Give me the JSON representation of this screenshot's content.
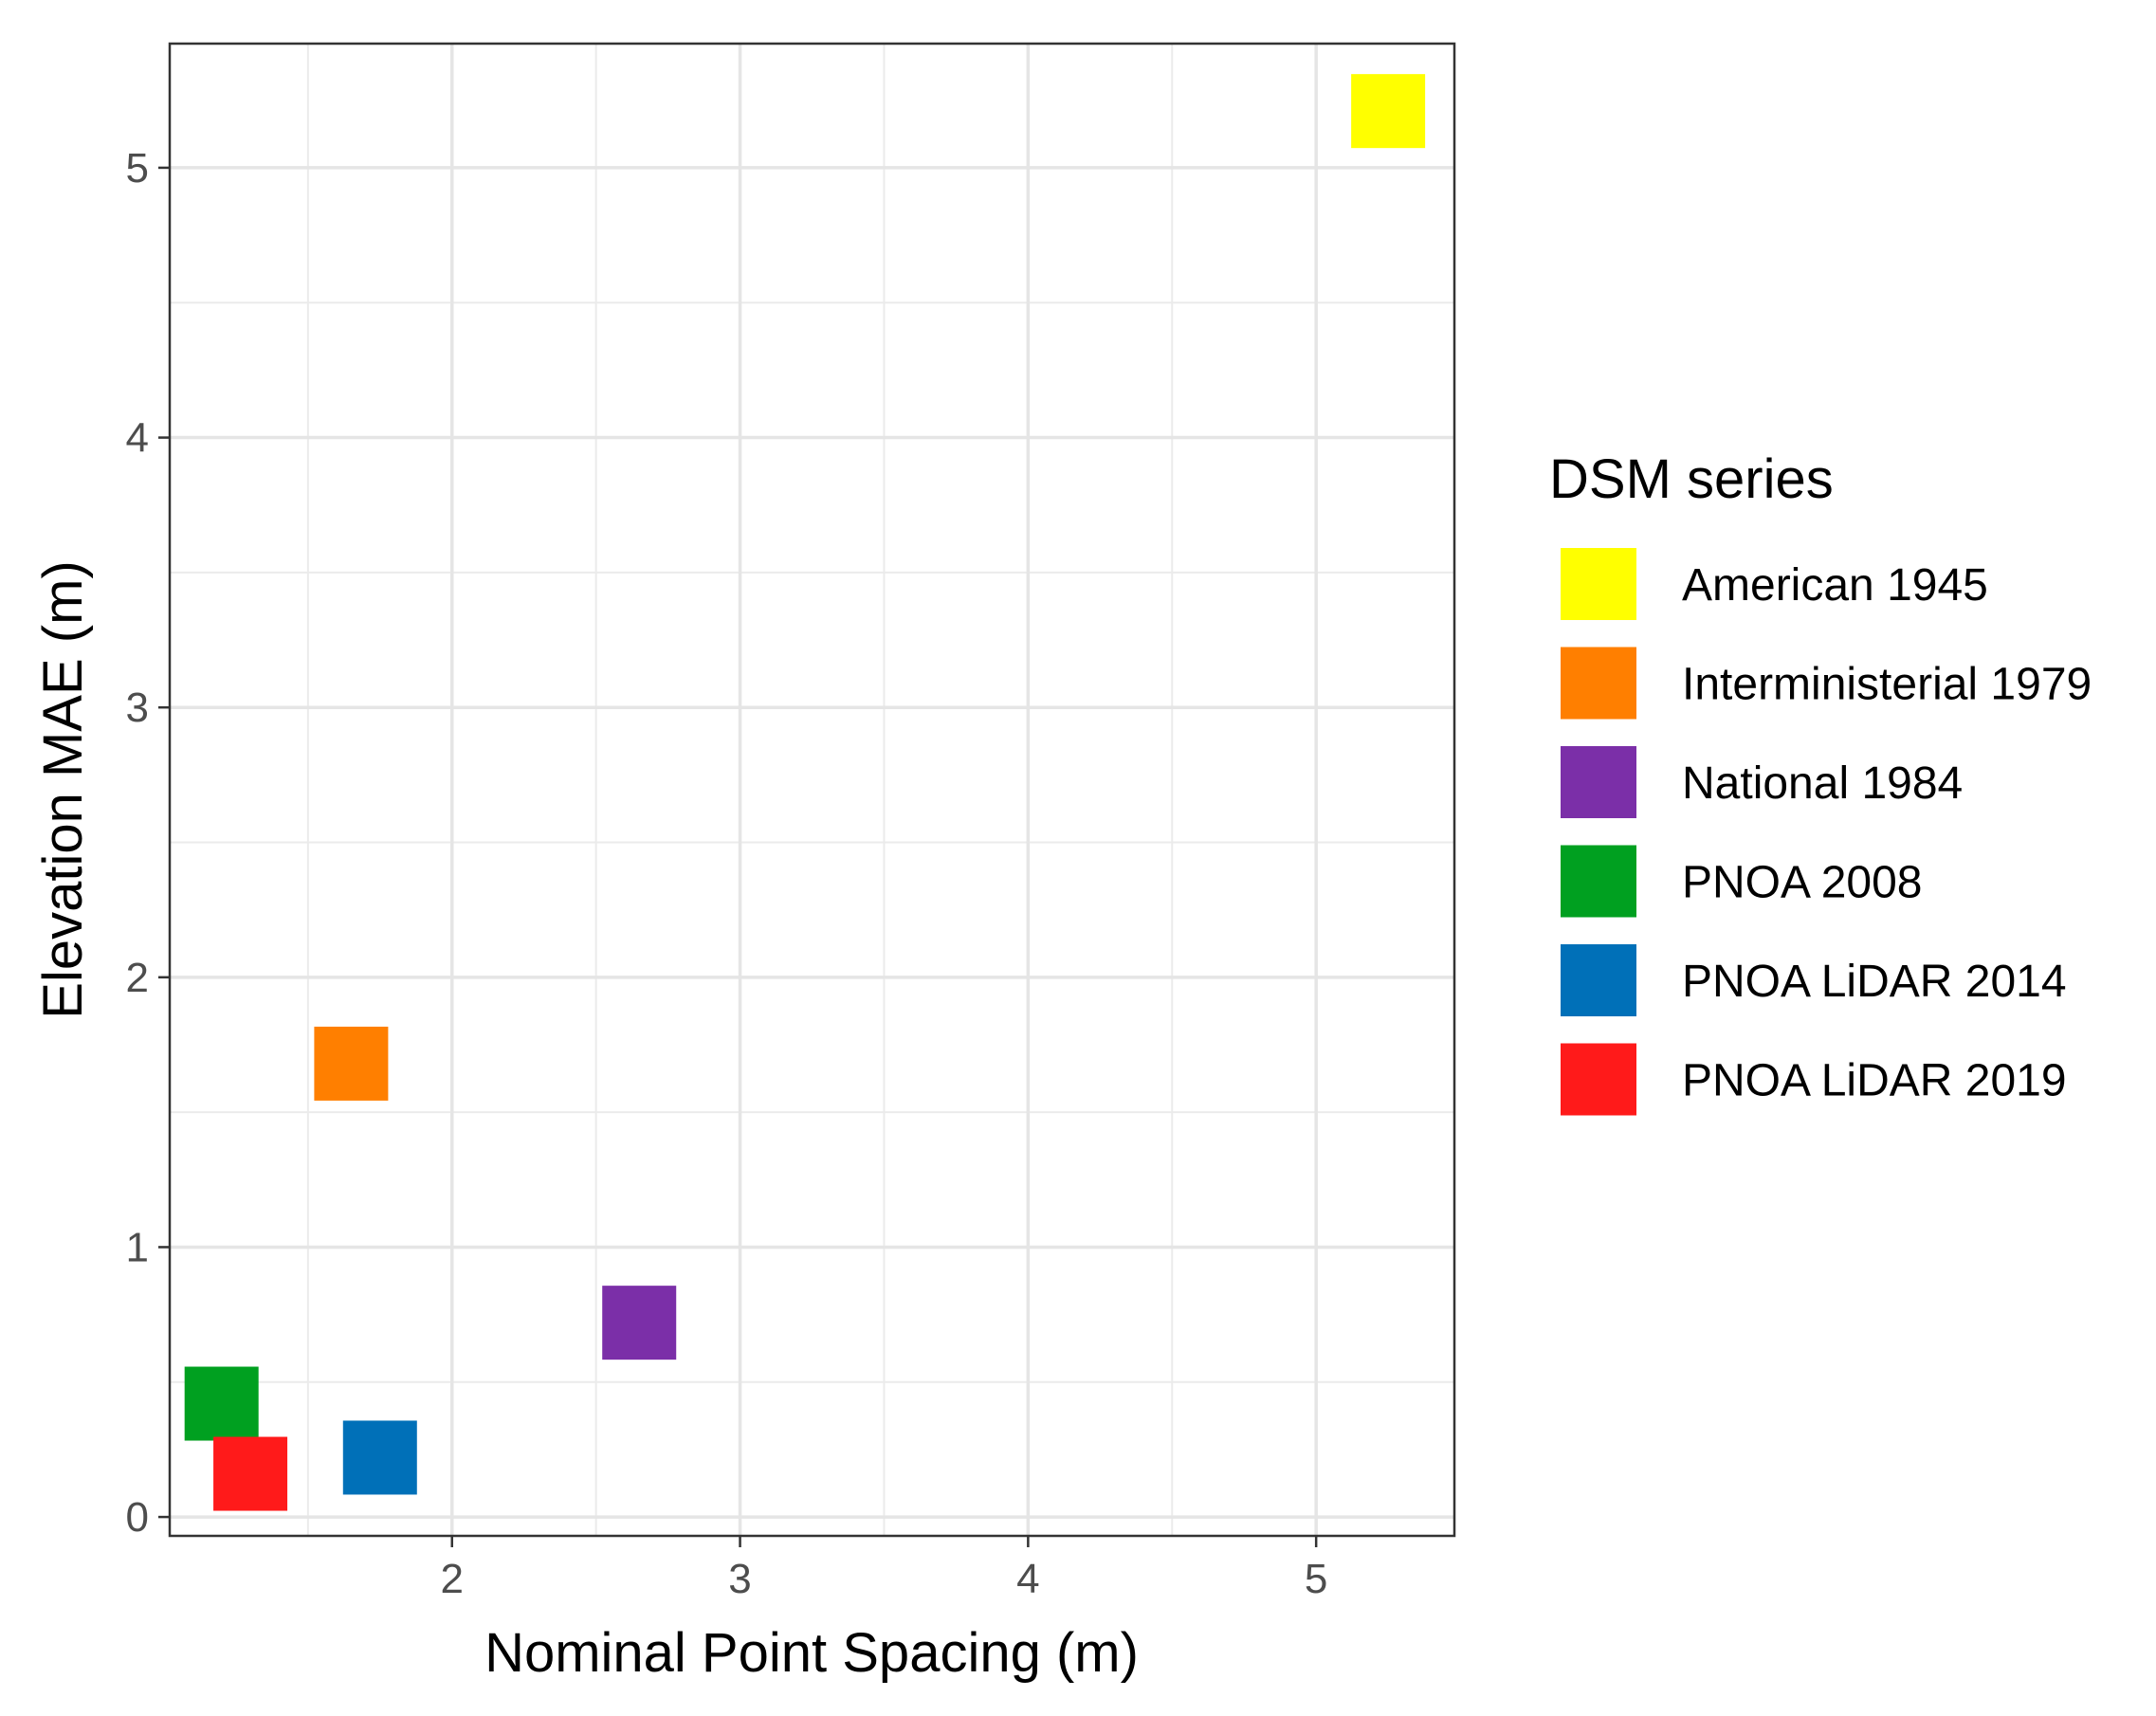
{
  "chart_data": {
    "type": "scatter",
    "title": "",
    "xlabel": "Nominal Point Spacing (m)",
    "ylabel": "Elevation MAE (m)",
    "xlim": [
      1.02,
      5.48
    ],
    "ylim": [
      -0.07,
      5.46
    ],
    "xticks": [
      2,
      3,
      4,
      5
    ],
    "yticks": [
      0,
      1,
      2,
      3,
      4,
      5
    ],
    "x_minor_gridlines": [
      1.5,
      2.5,
      3.5,
      4.5
    ],
    "y_minor_gridlines": [
      0.5,
      1.5,
      2.5,
      3.5,
      4.5
    ],
    "grid": true,
    "marker": "square",
    "legend": {
      "title": "DSM series",
      "position": "right"
    },
    "series": [
      {
        "name": "American 1945",
        "color": "#FFFF00",
        "x": 5.25,
        "y": 5.21
      },
      {
        "name": "Interministerial 1979",
        "color": "#FF7F00",
        "x": 1.65,
        "y": 1.68
      },
      {
        "name": "National 1984",
        "color": "#7B2FA8",
        "x": 2.65,
        "y": 0.72
      },
      {
        "name": "PNOA 2008",
        "color": "#00A020",
        "x": 1.2,
        "y": 0.42
      },
      {
        "name": "PNOA LiDAR 2014",
        "color": "#0070B8",
        "x": 1.75,
        "y": 0.22
      },
      {
        "name": "PNOA LiDAR 2019",
        "color": "#FF1A1A",
        "x": 1.3,
        "y": 0.16
      }
    ]
  }
}
